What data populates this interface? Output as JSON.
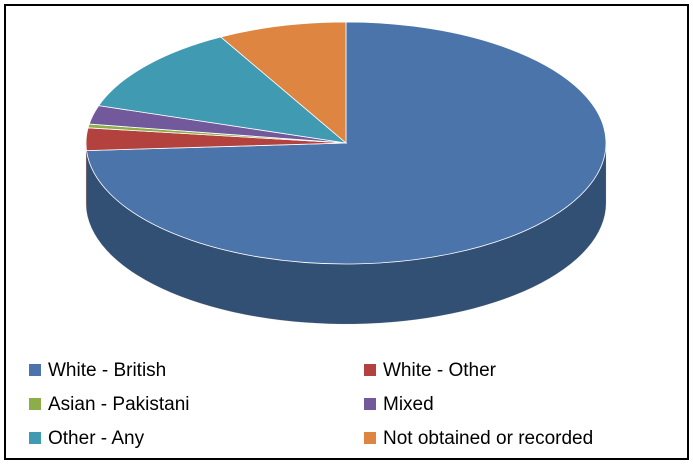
{
  "chart_data": {
    "type": "pie",
    "series": [
      {
        "name": "White - British",
        "color": "#4a74aa",
        "values": [
          74
        ]
      },
      {
        "name": "White - Other",
        "color": "#b3423f",
        "values": [
          3
        ]
      },
      {
        "name": "Asian - Pakistani",
        "color": "#8cad47",
        "values": [
          0.5
        ]
      },
      {
        "name": "Mixed",
        "color": "#72599b",
        "values": [
          2.5
        ]
      },
      {
        "name": "Other - Any",
        "color": "#3f9ab2",
        "values": [
          12
        ]
      },
      {
        "name": "Not obtained or recorded",
        "color": "#dd8541",
        "values": [
          8
        ]
      }
    ]
  }
}
